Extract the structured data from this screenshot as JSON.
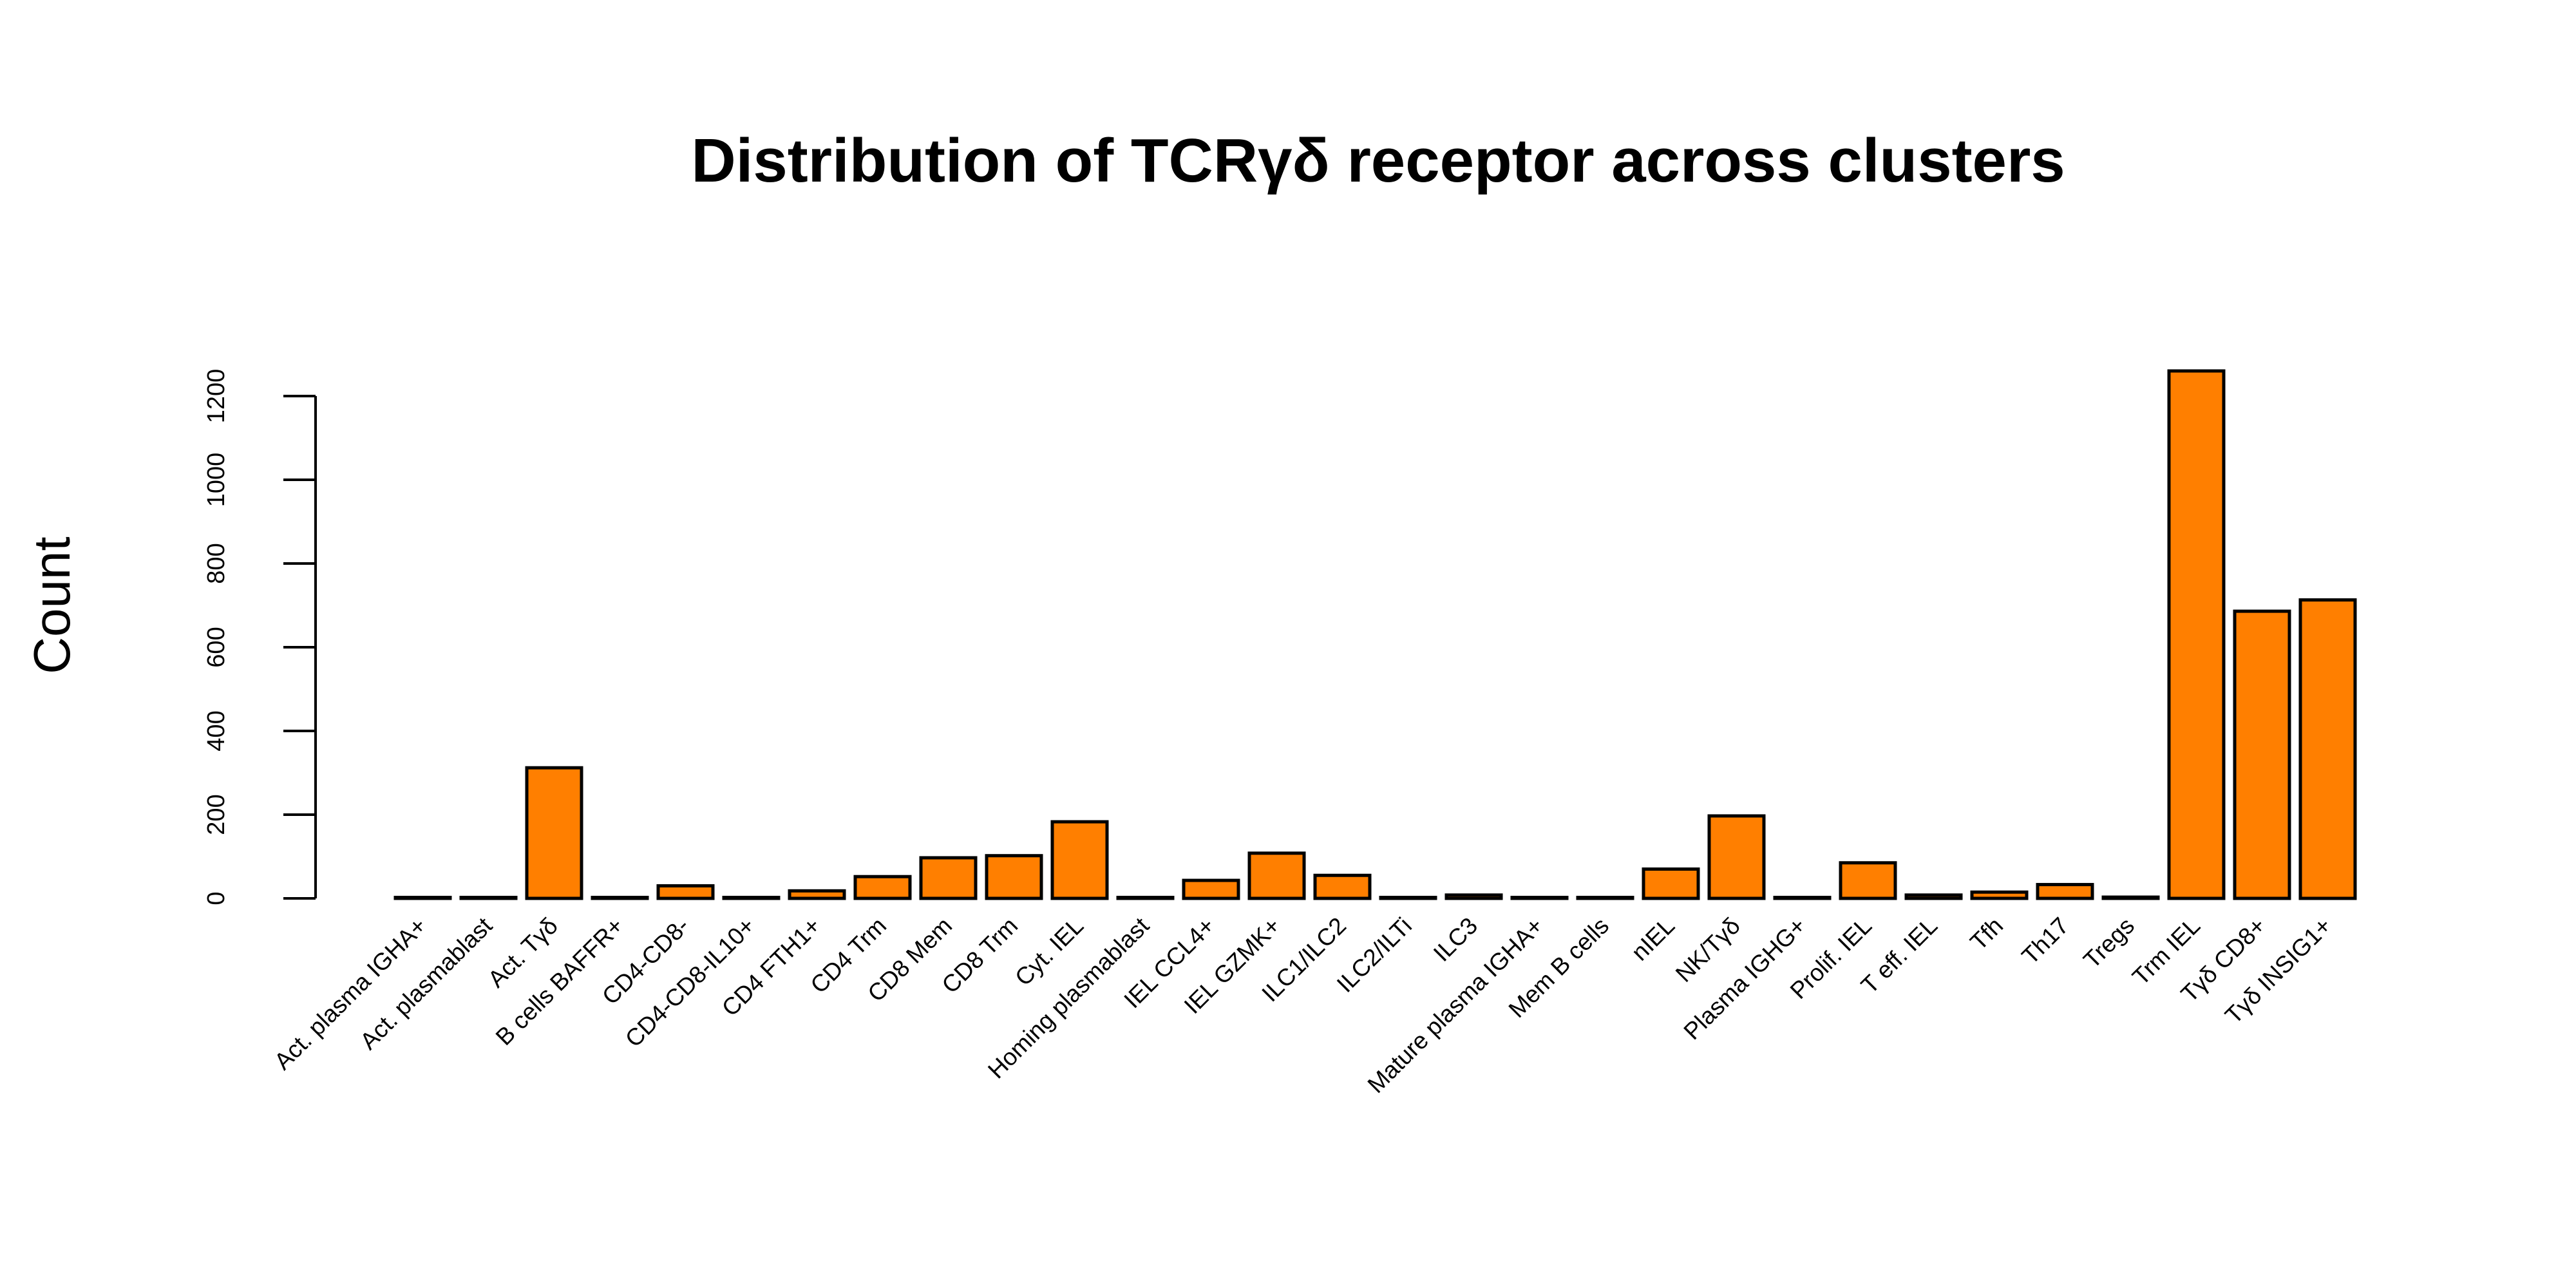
{
  "chart_data": {
    "type": "bar",
    "title": "Distribution of TCRγδ receptor across clusters",
    "xlabel": "",
    "ylabel": "Count",
    "categories": [
      "Act. plasma IGHA+",
      "Act. plasmablast",
      "Act. Tγδ",
      "B cells BAFFR+",
      "CD4-CD8-",
      "CD4-CD8-IL10+",
      "CD4 FTH1+",
      "CD4 Trm",
      "CD8 Mem",
      "CD8 Trm",
      "Cyt. IEL",
      "Homing plasmablast",
      "IEL CCL4+",
      "IEL GZMK+",
      "ILC1/ILC2",
      "ILC2/ILTi",
      "ILC3",
      "Mature plasma IGHA+",
      "Mem B cells",
      "nIEL",
      "NK/Tγδ",
      "Plasma IGHG+",
      "Prolif. IEL",
      "T eff. IEL",
      "Tfh",
      "Th17",
      "Tregs",
      "Trm IEL",
      "Tγδ CD8+",
      "Tγδ INSIG1+"
    ],
    "values": [
      0,
      0,
      312,
      0,
      30,
      0,
      18,
      52,
      97,
      102,
      183,
      0,
      43,
      108,
      55,
      0,
      8,
      0,
      0,
      70,
      197,
      0,
      85,
      8,
      15,
      33,
      3,
      1260,
      686,
      713
    ],
    "yticks": [
      0,
      200,
      400,
      600,
      800,
      1000,
      1200
    ],
    "ylim": [
      0,
      1300
    ],
    "grid": false,
    "colors": {
      "bar_fill": "#FF7F00",
      "bar_stroke": "#000000",
      "axis": "#000000"
    }
  }
}
